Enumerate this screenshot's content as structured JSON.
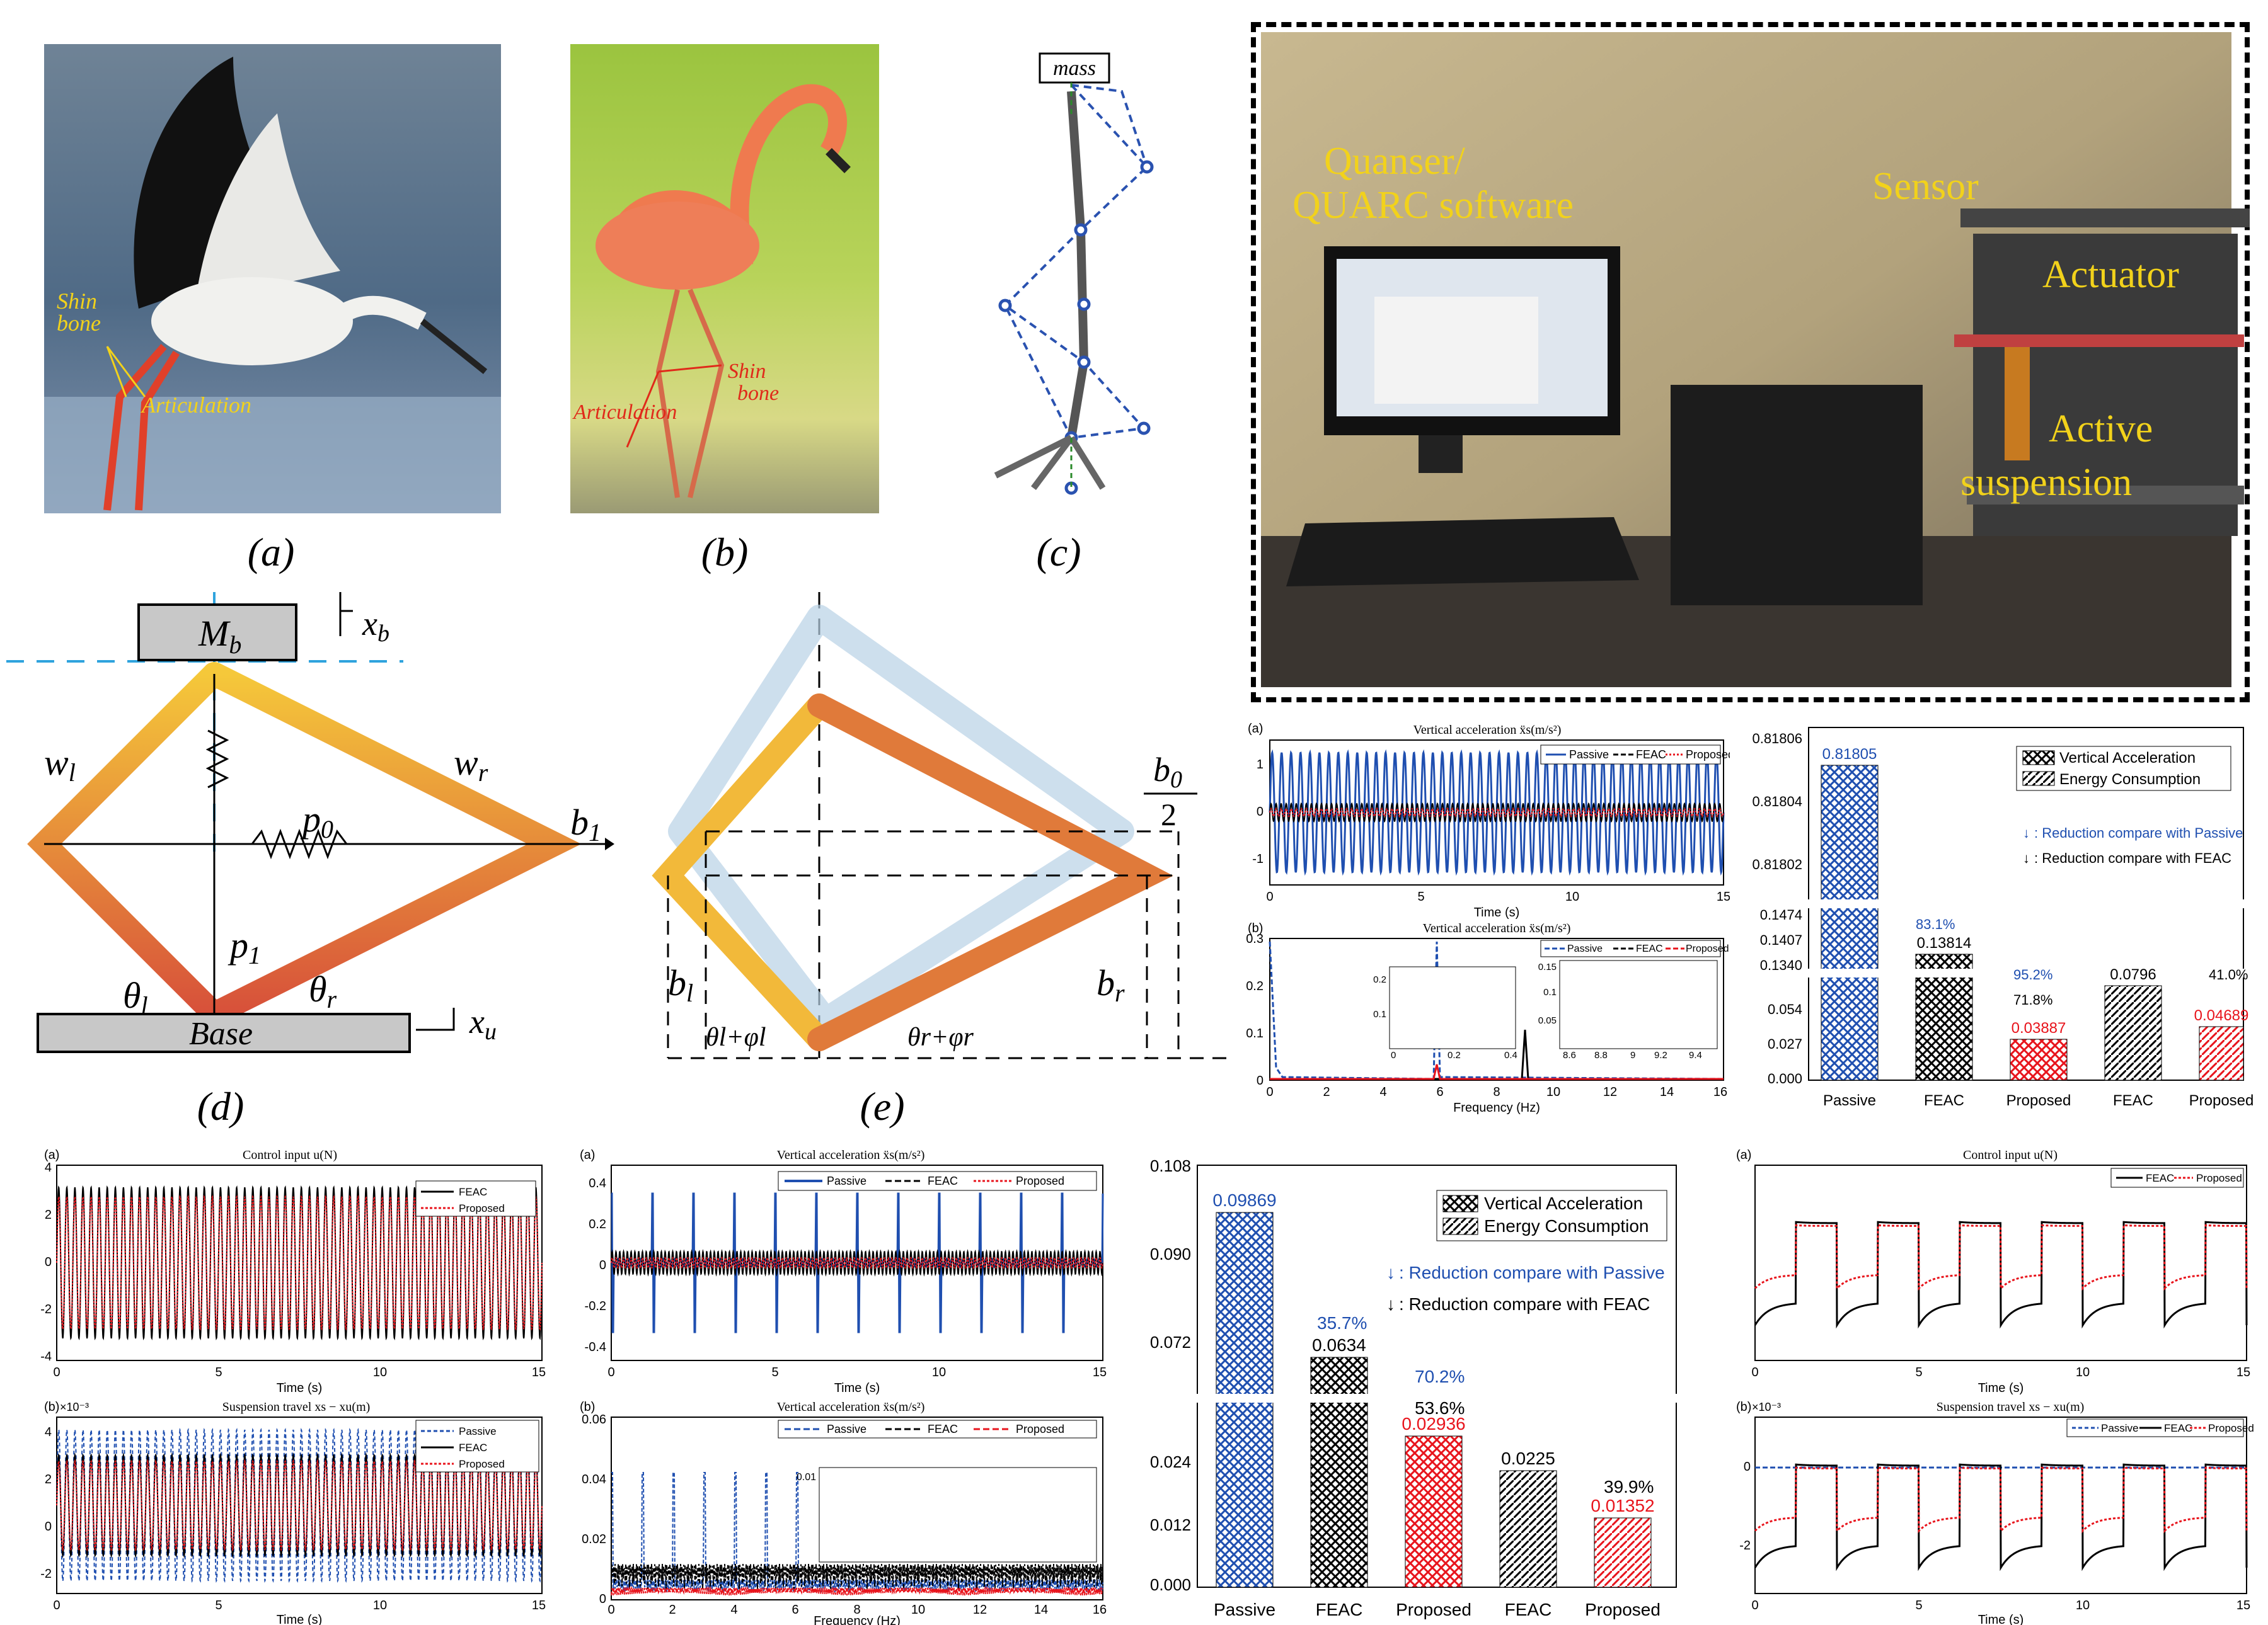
{
  "top_panels": {
    "stork": {
      "caption": "(a)",
      "shin": "Shin",
      "bone": "bone",
      "artic": "Articulation"
    },
    "flamingo": {
      "caption": "(b)",
      "shin": "Shin",
      "bone": "bone",
      "artic": "Articulation"
    },
    "leg": {
      "caption": "(c)",
      "mass": "mass"
    }
  },
  "models": {
    "d": {
      "caption": "(d)",
      "Mb": "M",
      "Mb_sub": "b",
      "xb": "x",
      "xb_sub": "b",
      "wl": "w",
      "wl_sub": "l",
      "wr": "w",
      "wr_sub": "r",
      "p0": "p",
      "p0_sub": "0",
      "p1": "p",
      "p1_sub": "1",
      "b1": "b",
      "b1_sub": "1",
      "thl": "θ",
      "thl_sub": "l",
      "thr": "θ",
      "thr_sub": "r",
      "base": "Base",
      "xu": "x",
      "xu_sub": "u"
    },
    "e": {
      "caption": "(e)",
      "b0": "b",
      "b0_sub": "0",
      "two": "2",
      "bl": "b",
      "bl_sub": "l",
      "br": "b",
      "br_sub": "r",
      "tl": "θl+φl",
      "tr": "θr+φr"
    }
  },
  "photo": {
    "labels": [
      "Quanser/",
      "QUARC software",
      "Sensor",
      "Actuator",
      "Active",
      "suspension"
    ]
  },
  "colors": {
    "passive": "#1f4fb0",
    "feac": "#000000",
    "proposed": "#e8141c",
    "label_yellow": "#f2d21b",
    "bar_blue": "#1f4fb0"
  },
  "chart_data": [
    {
      "id": "upper_time",
      "type": "line",
      "panel": "(a)",
      "title": "Vertical acceleration ẍs(m/s²)",
      "xlabel": "Time (s)",
      "ylabel": "",
      "xlim": [
        0,
        15
      ],
      "ylim": [
        -1.5,
        1.5
      ],
      "xticks": [
        "0",
        "5",
        "10",
        "15"
      ],
      "yticks": [
        "1",
        "0",
        "-1"
      ],
      "series": [
        {
          "name": "Passive",
          "amplitude": 1.1
        },
        {
          "name": "FEAC",
          "amplitude": 0.15
        },
        {
          "name": "Proposed",
          "amplitude": 0.05
        }
      ]
    },
    {
      "id": "upper_freq",
      "type": "line",
      "panel": "(b)",
      "title": "Vertical acceleration ẍs(m/s²)",
      "xlabel": "Frequency (Hz)",
      "xlim": [
        0,
        16
      ],
      "ylim": [
        0,
        0.3
      ],
      "xticks": [
        "0",
        "2",
        "4",
        "6",
        "8",
        "10",
        "12",
        "14",
        "16"
      ],
      "yticks": [
        "0.3",
        "0.2",
        "0.1",
        "0"
      ],
      "inset1": {
        "xticks": [
          "0",
          "0.2",
          "0.4"
        ],
        "yticks": [
          "0.2",
          "0.1"
        ]
      },
      "inset2": {
        "xticks": [
          "8.6",
          "8.8",
          "9",
          "9.2",
          "9.4"
        ],
        "yticks": [
          "0.15",
          "0.1",
          "0.05"
        ]
      },
      "series": [
        {
          "name": "Passive"
        },
        {
          "name": "FEAC"
        },
        {
          "name": "Proposed"
        }
      ]
    },
    {
      "id": "upper_bar",
      "type": "bar",
      "categories": [
        "Passive",
        "FEAC",
        "Proposed",
        "FEAC",
        "Proposed"
      ],
      "values": [
        0.81805,
        0.13814,
        0.03887,
        0.0796,
        0.04689
      ],
      "value_labels": [
        "0.81805",
        "0.13814",
        "0.03887",
        "0.0796",
        "0.04689"
      ],
      "yticks": [
        "0.81806",
        "0.81804",
        "0.81802",
        "0.1474",
        "0.1407",
        "0.1340",
        "0.054",
        "0.027",
        "0.000"
      ],
      "legend": [
        "Vertical Acceleration",
        "Energy Consumption"
      ],
      "note_passive": ": Reduction compare with Passive",
      "note_feac": ": Reduction compare with FEAC",
      "pct": [
        "83.1%",
        "95.2%",
        "71.8%",
        "41.0%"
      ]
    },
    {
      "id": "lower_left",
      "type": "line",
      "panel_a": "(a)",
      "title_a": "Control input u(N)",
      "xlim": [
        0,
        15
      ],
      "ylim_a": [
        -4,
        4
      ],
      "yticks_a": [
        "4",
        "2",
        "0",
        "-2",
        "-4"
      ],
      "legend_a": [
        "FEAC",
        "Proposed"
      ],
      "panel_b": "(b)",
      "exp": "×10⁻³",
      "title_b": "Suspension travel xs − xu(m)",
      "yticks_b": [
        "4",
        "2",
        "0",
        "-2"
      ],
      "legend_b": [
        "Passive",
        "FEAC",
        "Proposed"
      ],
      "xticks": [
        "0",
        "5",
        "10",
        "15"
      ],
      "xlabel": "Time (s)"
    },
    {
      "id": "lower_mid",
      "type": "line",
      "panel_a": "(a)",
      "title_a": "Vertical acceleration ẍs(m/s²)",
      "yticks_a": [
        "0.4",
        "0.2",
        "0",
        "-0.2",
        "-0.4"
      ],
      "xticks_a": [
        "0",
        "5",
        "10",
        "15"
      ],
      "xlabel_a": "Time (s)",
      "panel_b": "(b)",
      "title_b": "Vertical acceleration ẍs(m/s²)",
      "yticks_b": [
        "0.06",
        "0.04",
        "0.02",
        "0"
      ],
      "xticks_b": [
        "0",
        "2",
        "4",
        "6",
        "8",
        "10",
        "12",
        "14",
        "16"
      ],
      "xlabel_b": "Frequency (Hz)",
      "inset": {
        "xticks": [
          "4",
          "6",
          "8",
          "10",
          "12",
          "14"
        ],
        "yticks": [
          "0.01"
        ]
      },
      "legend": [
        "Passive",
        "FEAC",
        "Proposed"
      ]
    },
    {
      "id": "lower_bar",
      "type": "bar",
      "categories": [
        "Passive",
        "FEAC",
        "Proposed",
        "FEAC",
        "Proposed"
      ],
      "values": [
        0.09869,
        0.0634,
        0.02936,
        0.0225,
        0.01352
      ],
      "value_labels": [
        "0.09869",
        "0.0634",
        "0.02936",
        "0.0225",
        "0.01352"
      ],
      "yticks": [
        "0.108",
        "0.090",
        "0.072",
        "0.024",
        "0.012",
        "0.000"
      ],
      "legend": [
        "Vertical Acceleration",
        "Energy Consumption"
      ],
      "note_passive": ": Reduction compare with Passive",
      "note_feac": ": Reduction compare with FEAC",
      "pct": [
        "35.7%",
        "70.2%",
        "53.6%",
        "39.9%"
      ]
    },
    {
      "id": "lower_right",
      "type": "line",
      "panel_a": "(a)",
      "title_a": "Control input u(N)",
      "legend_a": [
        "FEAC",
        "Proposed"
      ],
      "panel_b": "(b)",
      "exp": "×10⁻³",
      "title_b": "Suspension travel xs − xu(m)",
      "yticks_b": [
        "0",
        "-2"
      ],
      "legend_b": [
        "Passive",
        "FEAC",
        "Proposed"
      ],
      "xticks": [
        "0",
        "5",
        "10",
        "15"
      ],
      "xlabel": "Time (s)"
    }
  ]
}
